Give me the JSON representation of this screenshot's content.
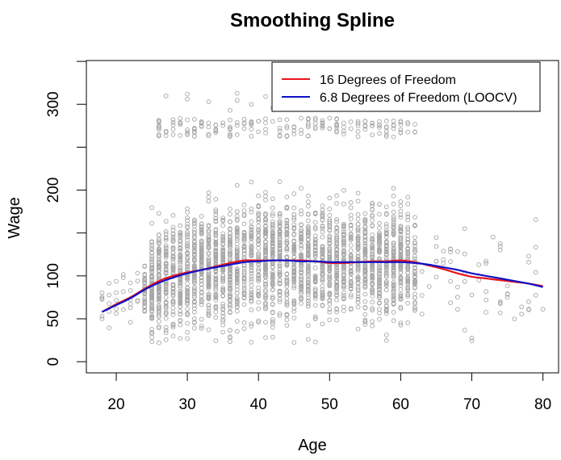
{
  "chart_data": {
    "type": "scatter",
    "title": "Smoothing Spline",
    "xlabel": "Age",
    "ylabel": "Wage",
    "xlim": [
      15.8,
      82.2
    ],
    "ylim": [
      -13,
      351
    ],
    "x_ticks": [
      20,
      30,
      40,
      50,
      60,
      70,
      80
    ],
    "y_ticks": [
      0,
      50,
      100,
      150,
      200,
      250,
      300,
      350
    ],
    "y_tick_labels": [
      0,
      50,
      100,
      200,
      300
    ],
    "grid": false,
    "legend_position": "top-right",
    "points_color": "#a6a6a6",
    "points_summary": {
      "n_points": 3000,
      "age_range": [
        18,
        80
      ],
      "bulk_wage_range": [
        25,
        200
      ],
      "high_earner_wage_range": [
        250,
        320
      ]
    },
    "series": [
      {
        "name": "16 Degrees of Freedom",
        "color": "#e8141c",
        "x": [
          18,
          20,
          22,
          24,
          26,
          28,
          30,
          32,
          34,
          36,
          38,
          40,
          42,
          44,
          46,
          48,
          50,
          52,
          54,
          56,
          58,
          60,
          62,
          64,
          66,
          68,
          70,
          72,
          74,
          76,
          78,
          80
        ],
        "y": [
          58,
          67,
          75,
          85,
          94,
          100,
          104,
          107,
          111,
          115,
          118,
          118,
          118,
          118,
          118,
          117,
          115,
          115,
          116,
          117,
          117,
          118,
          116,
          112,
          108,
          103,
          99,
          97,
          95,
          93,
          91,
          88
        ]
      },
      {
        "name": "6.8 Degrees of Freedom (LOOCV)",
        "color": "#1010c8",
        "x": [
          18,
          20,
          22,
          24,
          26,
          28,
          30,
          32,
          34,
          36,
          38,
          40,
          42,
          44,
          46,
          48,
          50,
          52,
          54,
          56,
          58,
          60,
          62,
          64,
          66,
          68,
          70,
          72,
          74,
          76,
          78,
          80
        ],
        "y": [
          58,
          66,
          74,
          84,
          92,
          98,
          103,
          107,
          110,
          113,
          116,
          117,
          118,
          118,
          117,
          117,
          116,
          116,
          116,
          116,
          116,
          116,
          115,
          113,
          110,
          107,
          103,
          100,
          97,
          94,
          91,
          87
        ]
      }
    ]
  }
}
